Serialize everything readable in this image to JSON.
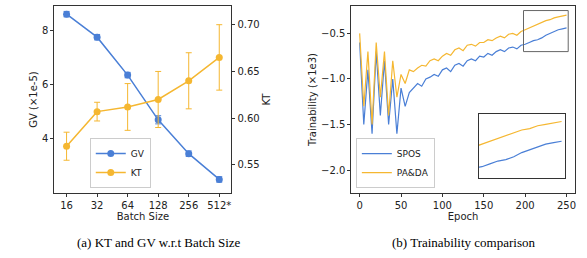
{
  "chart_data": [
    {
      "type": "line",
      "title": "(a) KT and GV w.r.t Batch Size",
      "categories": [
        "16",
        "32",
        "64",
        "128",
        "256",
        "512*"
      ],
      "x_label": "Batch Size",
      "y_label": "GV (×1e-5)",
      "y2_label": "KT",
      "ylim": [
        2.0,
        8.9
      ],
      "yticks": [
        4,
        6,
        8
      ],
      "y2lim": [
        0.52,
        0.72
      ],
      "y2ticks": [
        0.55,
        {
          "value": 0.6,
          "label": "0.60"
        },
        0.65,
        {
          "value": 0.7,
          "label": "0.70"
        }
      ],
      "grid": false,
      "legend": "lower left",
      "series": [
        {
          "name": "GV",
          "color": "#4a7fd6",
          "marker": "circle",
          "values": [
            8.6,
            7.75,
            6.35,
            4.7,
            3.45,
            2.5
          ],
          "errors": [
            0.1,
            0.1,
            0.1,
            0.15,
            0.1,
            0.1
          ]
        },
        {
          "name": "KT",
          "color": "#f5b731",
          "marker": "circle",
          "axis": "y2",
          "values": [
            0.57,
            0.607,
            0.612,
            0.62,
            0.64,
            0.665
          ],
          "errors": [
            0.015,
            0.01,
            0.025,
            0.03,
            0.03,
            0.035
          ]
        }
      ]
    },
    {
      "type": "line",
      "title": "(b) Trainability comparison",
      "x_label": "Epoch",
      "y_label": "Trainability (×1e3)",
      "x": [
        0,
        5,
        10,
        15,
        20,
        25,
        30,
        35,
        40,
        45,
        50,
        55,
        60,
        65,
        70,
        75,
        80,
        85,
        90,
        95,
        100,
        105,
        110,
        115,
        120,
        125,
        130,
        135,
        140,
        145,
        150,
        155,
        160,
        165,
        170,
        175,
        180,
        185,
        190,
        195,
        200,
        205,
        210,
        215,
        220,
        225,
        230,
        235,
        240,
        245,
        250
      ],
      "xlim": [
        -10,
        260
      ],
      "xticks": [
        0,
        50,
        100,
        150,
        200,
        250
      ],
      "ylim": [
        -2.25,
        -0.2
      ],
      "yticks": [
        {
          "value": -2,
          "label": "−2.0"
        },
        {
          "value": -1.5,
          "label": "−1.5"
        },
        {
          "value": -1,
          "label": "−1.0"
        },
        {
          "value": -0.5,
          "label": "−0.5"
        }
      ],
      "grid": false,
      "legend": "lower left",
      "inset": {
        "xlim": [
          198,
          252
        ],
        "ylim": [
          -0.7,
          -0.25
        ],
        "tick_labels": false
      },
      "series": [
        {
          "name": "SPOS",
          "color": "#4a7fd6",
          "values": [
            -0.6,
            -1.5,
            -0.9,
            -1.6,
            -0.7,
            -1.4,
            -0.8,
            -1.5,
            -1.0,
            -1.6,
            -1.1,
            -1.3,
            -1.15,
            -1.1,
            -1.05,
            -1.08,
            -1.0,
            -0.98,
            -0.95,
            -0.97,
            -0.9,
            -0.88,
            -0.92,
            -0.85,
            -0.83,
            -0.86,
            -0.8,
            -0.78,
            -0.8,
            -0.75,
            -0.76,
            -0.72,
            -0.74,
            -0.7,
            -0.68,
            -0.7,
            -0.66,
            -0.65,
            -0.67,
            -0.63,
            -0.62,
            -0.6,
            -0.58,
            -0.57,
            -0.55,
            -0.52,
            -0.5,
            -0.48,
            -0.46,
            -0.45,
            -0.44
          ]
        },
        {
          "name": "PA&DA",
          "color": "#f5b731",
          "values": [
            -0.5,
            -1.3,
            -0.7,
            -1.5,
            -0.6,
            -1.2,
            -0.7,
            -1.4,
            -0.8,
            -1.2,
            -0.95,
            -1.05,
            -0.9,
            -0.92,
            -0.88,
            -0.85,
            -0.86,
            -0.8,
            -0.78,
            -0.8,
            -0.75,
            -0.72,
            -0.74,
            -0.68,
            -0.66,
            -0.69,
            -0.63,
            -0.62,
            -0.64,
            -0.6,
            -0.6,
            -0.57,
            -0.58,
            -0.55,
            -0.53,
            -0.55,
            -0.51,
            -0.5,
            -0.52,
            -0.48,
            -0.46,
            -0.44,
            -0.42,
            -0.4,
            -0.38,
            -0.36,
            -0.35,
            -0.33,
            -0.32,
            -0.31,
            -0.3
          ]
        }
      ]
    }
  ]
}
